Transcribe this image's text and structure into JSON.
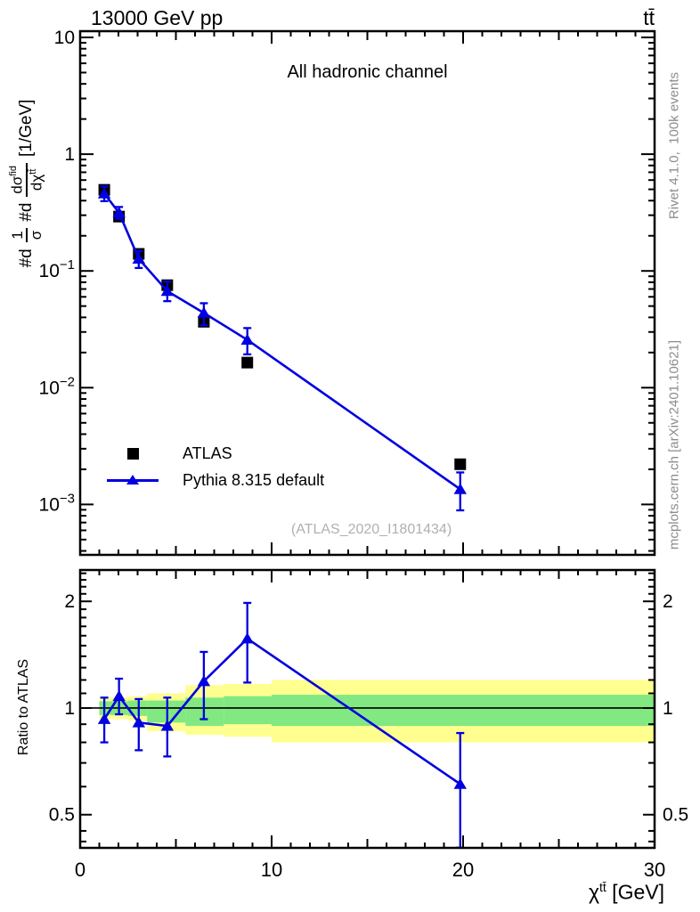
{
  "header": {
    "collision_energy": "13000 GeV pp",
    "process": "tt̄"
  },
  "main_panel": {
    "channel_label": "All hadronic channel",
    "analysis_ref": "(ATLAS_2020_I1801434)"
  },
  "legend": {
    "items": [
      {
        "label": "ATLAS",
        "marker": "black-square"
      },
      {
        "label": "Pythia 8.315 default",
        "marker": "blue-line-triangle"
      }
    ]
  },
  "side_notes": {
    "generator_note": "Rivet 4.1.0,  100k events",
    "source_note": "mcplots.cern.ch [arXiv:2401.10621]"
  },
  "axis_labels": {
    "y_main": {
      "prefix": "#d",
      "frac1_num": "1",
      "frac1_den": "σ",
      "mid": "#d",
      "frac2_num_base": "dσ",
      "frac2_num_sup": "fid",
      "frac2_den_base": "dχ",
      "frac2_den_sup": "tt̄",
      "suffix": "[1/GeV]"
    },
    "y_ratio": "Ratio to ATLAS",
    "x_base": "χ",
    "x_sup": "tt̄",
    "x_units": " [GeV]"
  },
  "colors": {
    "mc_blue": "#0000e0",
    "note_gray": "#8c8c8c",
    "watermark_gray": "#b0b0b0",
    "band_yellow": "#ffff8f",
    "band_green": "#82e882"
  },
  "chart_data": {
    "type": "scatter",
    "title": "13000 GeV pp",
    "panel_label": "All hadronic channel",
    "xlabel": "χ^tt [GeV]",
    "ylabel": "#d 1/σ #d dσ^fid/dχ^tt [1/GeV]",
    "legend_position": "left-middle",
    "grid": false,
    "xlim": [
      0,
      30
    ],
    "x_ticks": [
      {
        "v": 0,
        "t": "0"
      },
      {
        "v": 10,
        "t": "10"
      },
      {
        "v": 20,
        "t": "20"
      },
      {
        "v": 30,
        "t": "30"
      }
    ],
    "main": {
      "yscale": "log",
      "ylim": [
        0.00037,
        11.31
      ],
      "y_ticks": [
        {
          "v": 10,
          "t": "10"
        },
        {
          "v": 1,
          "t": "1"
        },
        {
          "v": 0.1,
          "t": "10",
          "e": "−1"
        },
        {
          "v": 0.01,
          "t": "10",
          "e": "−2"
        },
        {
          "v": 0.001,
          "t": "10",
          "e": "−3"
        }
      ]
    },
    "x": [
      1.26,
      2.03,
      3.06,
      4.55,
      6.46,
      8.73,
      19.85
    ],
    "series": [
      {
        "name": "ATLAS",
        "role": "data",
        "marker": "square",
        "color": "#000000",
        "values": [
          0.495,
          0.292,
          0.14,
          0.0755,
          0.0367,
          0.0164,
          0.00221
        ]
      },
      {
        "name": "Pythia 8.315 default",
        "role": "mc",
        "marker": "triangle",
        "color": "#0000e0",
        "values": [
          0.46,
          0.315,
          0.127,
          0.0672,
          0.0437,
          0.0257,
          0.00135
        ],
        "err_up": [
          0.069,
          0.038,
          0.021,
          0.0136,
          0.0092,
          0.0067,
          0.00053
        ],
        "err_down": [
          0.064,
          0.035,
          0.021,
          0.0121,
          0.0095,
          0.0064,
          0.00046
        ]
      }
    ],
    "ratio": {
      "label": "Ratio to ATLAS",
      "yscale": "log",
      "ylim": [
        0.403,
        2.452
      ],
      "y_ticks": [
        {
          "v": 2,
          "t": "2"
        },
        {
          "v": 1,
          "t": "1"
        },
        {
          "v": 0.5,
          "t": "0.5"
        }
      ],
      "minor_ticks": [
        0.42,
        0.45,
        0.6,
        0.7,
        0.8,
        0.9,
        1.1,
        1.2,
        1.3,
        1.4,
        1.5,
        1.6,
        1.7,
        1.8,
        1.9,
        2.1,
        2.2,
        2.3,
        2.4
      ],
      "values": [
        0.93,
        1.08,
        0.91,
        0.89,
        1.19,
        1.57,
        0.61
      ],
      "err_up": [
        0.14,
        0.13,
        0.15,
        0.18,
        0.25,
        0.41,
        0.24
      ],
      "err_down": [
        0.13,
        0.12,
        0.15,
        0.16,
        0.26,
        0.39,
        0.21
      ],
      "bands": {
        "bins": [
          [
            1,
            1.5
          ],
          [
            1.5,
            2.5
          ],
          [
            2.5,
            3.5
          ],
          [
            3.5,
            5.5
          ],
          [
            5.5,
            7.5
          ],
          [
            7.5,
            10
          ],
          [
            10,
            30
          ]
        ],
        "yellow": [
          [
            0.93,
            1.07
          ],
          [
            0.93,
            1.07
          ],
          [
            0.92,
            1.08
          ],
          [
            0.86,
            1.1
          ],
          [
            0.84,
            1.16
          ],
          [
            0.83,
            1.17
          ],
          [
            0.8,
            1.2
          ]
        ],
        "green": [
          [
            0.955,
            1.045
          ],
          [
            0.955,
            1.045
          ],
          [
            0.95,
            1.05
          ],
          [
            0.91,
            1.05
          ],
          [
            0.89,
            1.07
          ],
          [
            0.9,
            1.08
          ],
          [
            0.89,
            1.09
          ]
        ]
      }
    }
  }
}
